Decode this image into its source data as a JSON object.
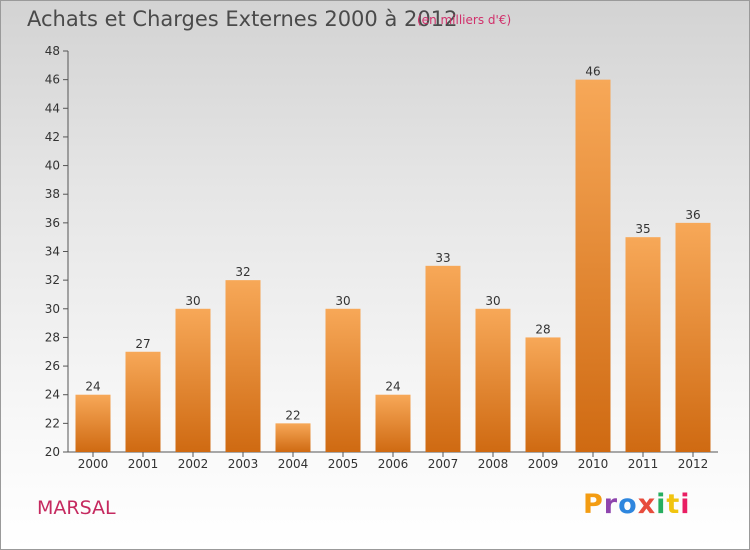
{
  "header": {
    "title": "Achats et Charges Externes 2000 à 2012",
    "unit": "(en milliers d'€)"
  },
  "footer": {
    "city": "MARSAL",
    "logo_text": "Proxiti",
    "logo_colors": [
      "#f39c12",
      "#8e44ad",
      "#2e86de",
      "#e74c3c",
      "#27ae60",
      "#f1c40f",
      "#e91e63"
    ]
  },
  "chart_data": {
    "type": "bar",
    "categories": [
      "2000",
      "2001",
      "2002",
      "2003",
      "2004",
      "2005",
      "2006",
      "2007",
      "2008",
      "2009",
      "2010",
      "2011",
      "2012"
    ],
    "values": [
      24,
      27,
      30,
      32,
      22,
      30,
      24,
      33,
      30,
      28,
      46,
      35,
      36
    ],
    "title": "Achats et Charges Externes 2000 à 2012",
    "subtitle": "(en milliers d'€)",
    "ylim": [
      20,
      48
    ],
    "yticks": [
      20,
      22,
      24,
      26,
      28,
      30,
      32,
      34,
      36,
      38,
      40,
      42,
      44,
      46,
      48
    ],
    "grid": false,
    "bar_color_top": "#f7a858",
    "bar_color_bottom": "#cf6a12"
  }
}
